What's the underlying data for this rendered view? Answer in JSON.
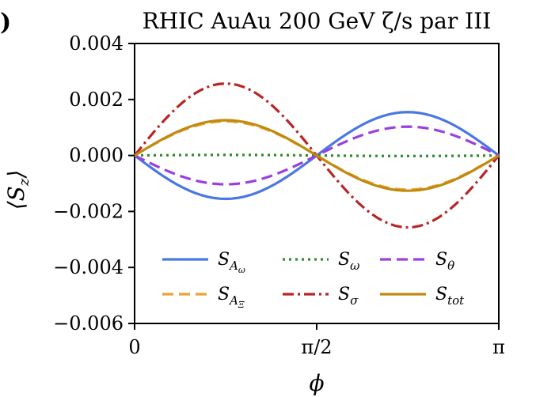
{
  "chart_data": {
    "type": "line",
    "title": "RHIC AuAu 200 GeV ζ/s par III",
    "xlabel": "ϕ",
    "ylabel": "⟨S_z⟩",
    "xlim": [
      0,
      3.14159
    ],
    "ylim": [
      -0.006,
      0.004
    ],
    "xticks": [
      {
        "value": 0,
        "label": "0"
      },
      {
        "value": 1.5708,
        "label": "π/2"
      },
      {
        "value": 3.14159,
        "label": "π"
      }
    ],
    "yticks": [
      {
        "value": 0.004,
        "label": "0.004"
      },
      {
        "value": 0.002,
        "label": "0.002"
      },
      {
        "value": 0.0,
        "label": "0.000"
      },
      {
        "value": -0.002,
        "label": "−0.002"
      },
      {
        "value": -0.004,
        "label": "−0.004"
      },
      {
        "value": -0.006,
        "label": "−0.006"
      }
    ],
    "grid": false,
    "legend_position": "lower-center",
    "series": [
      {
        "name": "S_{A_ω}",
        "form": "sin2",
        "amplitude": -0.00155,
        "color": "#4a78e0",
        "style": "solid"
      },
      {
        "name": "S_{A_Ξ}",
        "form": "sin2",
        "amplitude": 0.00122,
        "color": "#f0a030",
        "style": "dashed"
      },
      {
        "name": "S_ω",
        "form": "sin2",
        "amplitude": 2e-05,
        "color": "#2e8b2e",
        "style": "dotted"
      },
      {
        "name": "S_σ",
        "form": "sin2",
        "amplitude": 0.00257,
        "color": "#b82525",
        "style": "dashdot"
      },
      {
        "name": "S_θ",
        "form": "sin2",
        "amplitude": -0.00103,
        "color": "#9a40e0",
        "style": "dashed"
      },
      {
        "name": "S_tot",
        "form": "sin2",
        "amplitude": 0.00126,
        "color": "#c08a10",
        "style": "solid"
      }
    ],
    "legend": [
      {
        "base": "S",
        "sub": "A",
        "subsub": "ω"
      },
      {
        "base": "S",
        "sub": "ω",
        "subsub": ""
      },
      {
        "base": "S",
        "sub": "θ",
        "subsub": ""
      },
      {
        "base": "S",
        "sub": "A",
        "subsub": "Ξ"
      },
      {
        "base": "S",
        "sub": "σ",
        "subsub": ""
      },
      {
        "base": "S",
        "sub": "tot",
        "subsub": ""
      }
    ]
  },
  "panel_label": ")"
}
